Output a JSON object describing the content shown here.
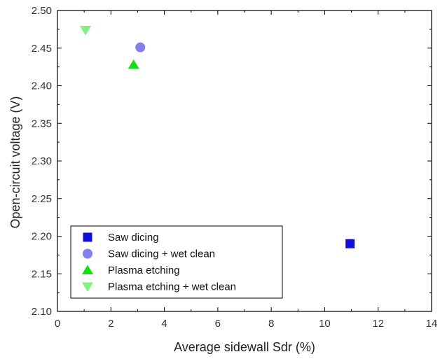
{
  "chart_data": {
    "type": "scatter",
    "xlabel": "Average sidewall Sdr (%)",
    "ylabel": "Open-circuit voltage (V)",
    "xlim": [
      0,
      14
    ],
    "ylim": [
      2.1,
      2.5
    ],
    "x_ticks": [
      "0",
      "2",
      "4",
      "6",
      "8",
      "10",
      "12",
      "14"
    ],
    "y_ticks": [
      "2.10",
      "2.15",
      "2.20",
      "2.25",
      "2.30",
      "2.35",
      "2.40",
      "2.45",
      "2.50"
    ],
    "grid": false,
    "legend_position": "bottom-left",
    "series": [
      {
        "name": "Saw dicing",
        "marker": "square",
        "color": "#1010d8",
        "points": [
          {
            "x": 10.95,
            "y": 2.19
          }
        ]
      },
      {
        "name": "Saw dicing + wet clean",
        "marker": "circle",
        "color": "#8080ee",
        "points": [
          {
            "x": 3.1,
            "y": 2.451
          }
        ]
      },
      {
        "name": "Plasma etching",
        "marker": "triangle-up",
        "color": "#10e010",
        "points": [
          {
            "x": 2.85,
            "y": 2.428
          }
        ]
      },
      {
        "name": "Plasma etching + wet clean",
        "marker": "triangle-down",
        "color": "#80f080",
        "points": [
          {
            "x": 1.05,
            "y": 2.474
          }
        ]
      }
    ]
  }
}
